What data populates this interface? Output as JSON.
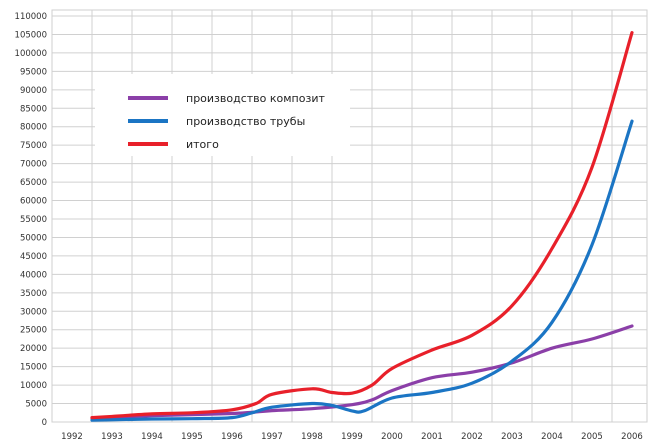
{
  "chart_data": {
    "type": "line",
    "x": [
      "1992",
      "1993",
      "1994",
      "1995",
      "1996",
      "1997",
      "1998",
      "1999",
      "2000",
      "2001",
      "2002",
      "2003",
      "2004",
      "2005",
      "2006"
    ],
    "y_ticks": [
      0,
      5000,
      10000,
      15000,
      20000,
      25000,
      30000,
      35000,
      40000,
      45000,
      50000,
      55000,
      60000,
      65000,
      70000,
      75000,
      80000,
      85000,
      90000,
      95000,
      100000,
      105000,
      110000
    ],
    "ylim": [
      0,
      110000
    ],
    "grid": true,
    "legend_position": "top-left",
    "series": [
      {
        "name": "производство композит",
        "color": "#8b3fa8",
        "points": [
          [
            1992.5,
            1000
          ],
          [
            1993,
            1300
          ],
          [
            1994,
            1700
          ],
          [
            1995,
            2000
          ],
          [
            1996,
            2300
          ],
          [
            1996.5,
            2600
          ],
          [
            1997,
            3100
          ],
          [
            1998,
            3600
          ],
          [
            1999,
            4700
          ],
          [
            1999.5,
            6000
          ],
          [
            2000,
            8500
          ],
          [
            2001,
            12000
          ],
          [
            2002,
            13500
          ],
          [
            2003,
            16000
          ],
          [
            2004,
            20000
          ],
          [
            2005,
            22500
          ],
          [
            2006,
            26000
          ]
        ]
      },
      {
        "name": "производство трубы",
        "color": "#1b75c4",
        "points": [
          [
            1992.5,
            500
          ],
          [
            1993,
            600
          ],
          [
            1994,
            800
          ],
          [
            1995,
            900
          ],
          [
            1996,
            1200
          ],
          [
            1996.5,
            2500
          ],
          [
            1997,
            4000
          ],
          [
            1998,
            5000
          ],
          [
            1998.5,
            4500
          ],
          [
            1999,
            3000
          ],
          [
            1999.3,
            3000
          ],
          [
            2000,
            6500
          ],
          [
            2001,
            8000
          ],
          [
            2002,
            10500
          ],
          [
            2003,
            16500
          ],
          [
            2004,
            27000
          ],
          [
            2005,
            48000
          ],
          [
            2006,
            81500
          ]
        ]
      },
      {
        "name": "итого",
        "color": "#e8202a",
        "points": [
          [
            1992.5,
            1200
          ],
          [
            1993,
            1500
          ],
          [
            1994,
            2200
          ],
          [
            1995,
            2500
          ],
          [
            1996,
            3300
          ],
          [
            1996.6,
            5000
          ],
          [
            1997,
            7500
          ],
          [
            1998,
            9000
          ],
          [
            1998.5,
            8000
          ],
          [
            1999,
            7800
          ],
          [
            1999.5,
            10000
          ],
          [
            2000,
            14500
          ],
          [
            2001,
            19500
          ],
          [
            2002,
            23500
          ],
          [
            2003,
            31500
          ],
          [
            2004,
            47000
          ],
          [
            2005,
            69000
          ],
          [
            2006,
            105500
          ]
        ]
      }
    ]
  }
}
